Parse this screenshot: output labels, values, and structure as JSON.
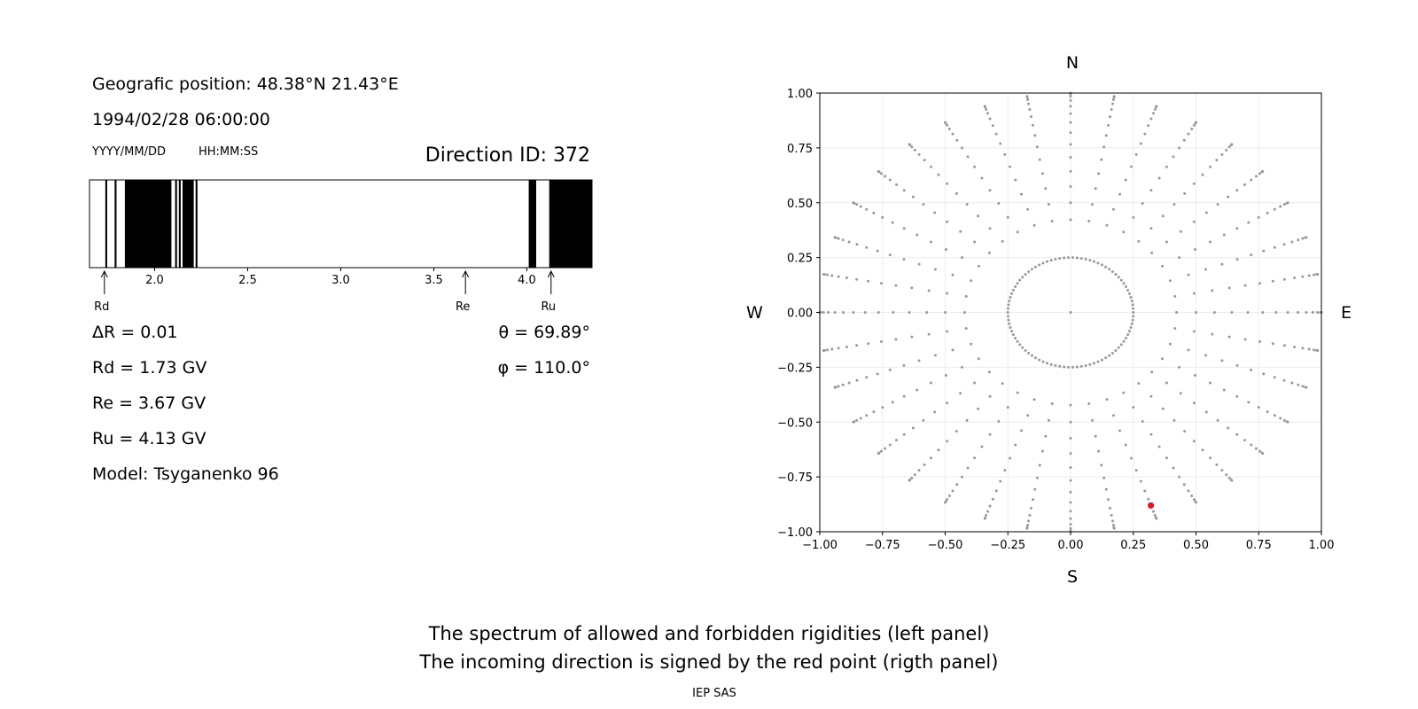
{
  "left_panel": {
    "position_label": "Geografic position: 48.38°N 21.43°E",
    "datetime": "1994/02/28 06:00:00",
    "date_hint": "YYYY/MM/DD",
    "time_hint": "HH:MM:SS",
    "direction_id": "Direction ID: 372",
    "delta_r": "ΔR = 0.01",
    "rd": "Rd = 1.73 GV",
    "re": "Re = 3.67 GV",
    "ru": "Ru = 4.13 GV",
    "model": "Model: Tsyganenko 96",
    "theta": "θ = 69.89°",
    "phi": "φ = 110.0°"
  },
  "compass": {
    "n": "N",
    "s": "S",
    "w": "W",
    "e": "E"
  },
  "captions": {
    "line1": "The spectrum of allowed and forbidden rigidities (left panel)",
    "line2": "The incoming direction is signed by the red point (rigth panel)",
    "credit": "IEP SAS"
  },
  "colors": {
    "forbidden": "#000000",
    "grid_point": "#999999",
    "selected_point": "#e8141b"
  },
  "chart_data": [
    {
      "type": "spectrum",
      "xlabel": "",
      "xlim": [
        1.65,
        4.35
      ],
      "ticks": [
        2.0,
        2.5,
        3.0,
        3.5,
        4.0
      ],
      "tick_labels": [
        "2.0",
        "2.5",
        "3.0",
        "3.5",
        "4.0"
      ],
      "forbidden_bands": [
        [
          1.735,
          1.745
        ],
        [
          1.785,
          1.795
        ],
        [
          1.84,
          2.09
        ],
        [
          2.11,
          2.12
        ],
        [
          2.13,
          2.14
        ],
        [
          2.15,
          2.21
        ],
        [
          2.22,
          2.23
        ],
        [
          4.01,
          4.05
        ],
        [
          4.12,
          4.35
        ]
      ],
      "markers": [
        {
          "label": "Rd",
          "value": 1.73
        },
        {
          "label": "Re",
          "value": 3.67
        },
        {
          "label": "Ru",
          "value": 4.13
        }
      ]
    },
    {
      "type": "scatter",
      "title": "",
      "xlim": [
        -1.0,
        1.0
      ],
      "ylim": [
        -1.0,
        1.0
      ],
      "xticks": [
        -1.0,
        -0.75,
        -0.5,
        -0.25,
        0.0,
        0.25,
        0.5,
        0.75,
        1.0
      ],
      "xtick_labels": [
        "−1.00",
        "−0.75",
        "−0.50",
        "−0.25",
        "0.00",
        "0.25",
        "0.50",
        "0.75",
        "1.00"
      ],
      "yticks": [
        1.0,
        0.75,
        0.5,
        0.25,
        0.0,
        -0.25,
        -0.5,
        -0.75,
        -1.0
      ],
      "ytick_labels": [
        "1.00",
        "0.75",
        "0.50",
        "0.25",
        "0.00",
        "−0.25",
        "−0.50",
        "−0.75",
        "−1.00"
      ],
      "grid": true,
      "description": "Directions grid: zenith angles 0–90° in 5° steps (radius = sin θ), azimuths in 10° steps plus a 90-point ring at radius 0.25",
      "ring_radius": 0.25,
      "ring_count": 90,
      "zenith_step_deg": 5,
      "azimuth_step_deg": 10,
      "selected": {
        "x": 0.32,
        "y": -0.88
      }
    }
  ]
}
